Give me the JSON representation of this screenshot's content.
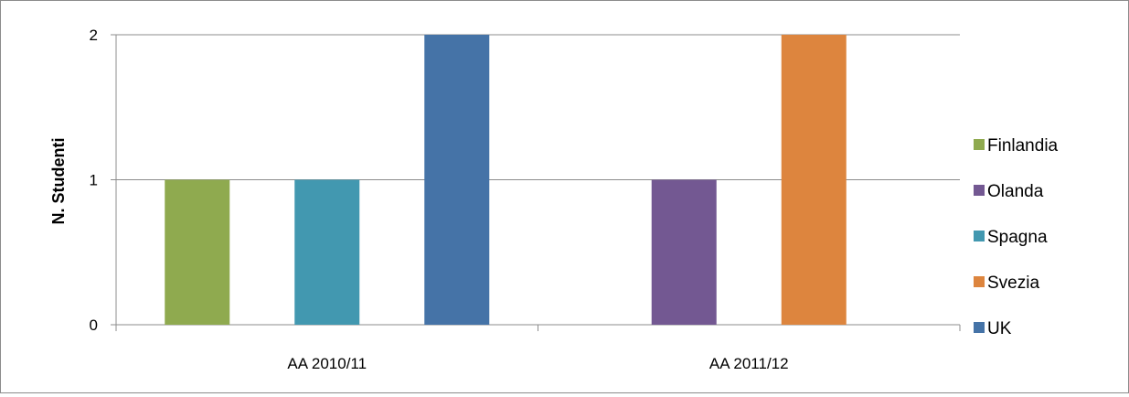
{
  "chart_data": {
    "type": "bar",
    "categories": [
      "AA 2010/11",
      "AA 2011/12"
    ],
    "series": [
      {
        "name": "Finlandia",
        "color": "#8faa4f",
        "values": [
          1,
          0
        ]
      },
      {
        "name": "Olanda",
        "color": "#735892",
        "values": [
          0,
          1
        ]
      },
      {
        "name": "Spagna",
        "color": "#4298b0",
        "values": [
          1,
          0
        ]
      },
      {
        "name": "Svezia",
        "color": "#dd853e",
        "values": [
          0,
          2
        ]
      },
      {
        "name": "UK",
        "color": "#4573a7",
        "values": [
          2,
          0
        ]
      }
    ],
    "bar_order": [
      [
        "Finlandia",
        "Spagna",
        "UK"
      ],
      [
        "Olanda",
        "Svezia"
      ]
    ],
    "ylabel": "N. Studenti",
    "xlabel": "",
    "ylim": [
      0,
      2
    ],
    "yticks": [
      "0",
      "1",
      "2"
    ],
    "grid": true,
    "legend_position": "right"
  }
}
